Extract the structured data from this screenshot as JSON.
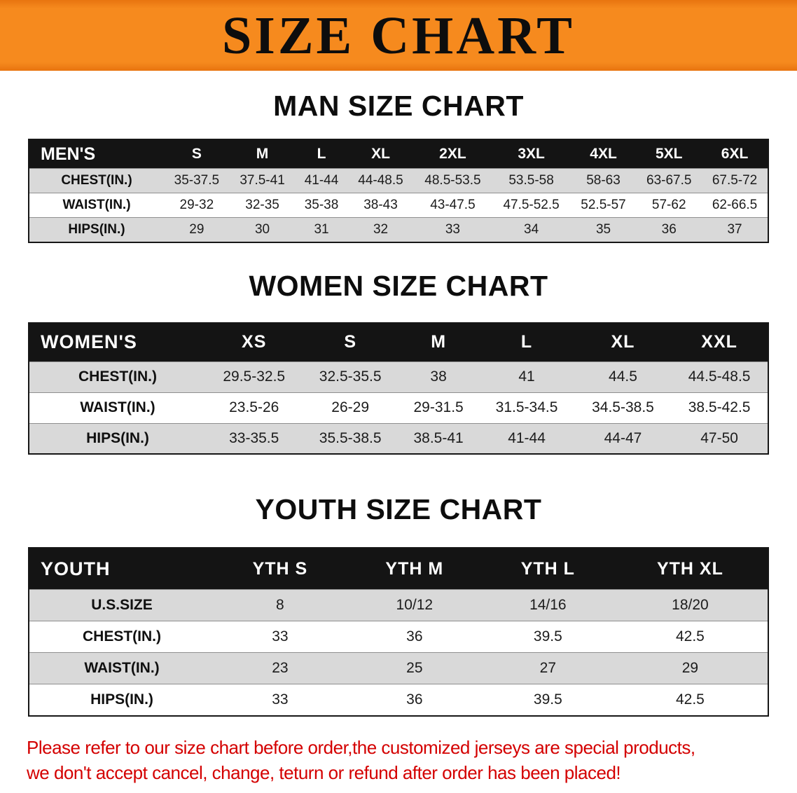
{
  "banner": {
    "title": "SIZE CHART"
  },
  "colors": {
    "banner_orange": "#F68A1E",
    "table_header_black": "#141414",
    "row_gray": "#D9D9D9",
    "disclaimer_red": "#D40000"
  },
  "sections": {
    "men": {
      "heading": "MAN SIZE CHART",
      "table": {
        "header": [
          "MEN'S",
          "S",
          "M",
          "L",
          "XL",
          "2XL",
          "3XL",
          "4XL",
          "5XL",
          "6XL"
        ],
        "rows": [
          {
            "label": "CHEST(IN.)",
            "values": [
              "35-37.5",
              "37.5-41",
              "41-44",
              "44-48.5",
              "48.5-53.5",
              "53.5-58",
              "58-63",
              "63-67.5",
              "67.5-72"
            ]
          },
          {
            "label": "WAIST(IN.)",
            "values": [
              "29-32",
              "32-35",
              "35-38",
              "38-43",
              "43-47.5",
              "47.5-52.5",
              "52.5-57",
              "57-62",
              "62-66.5"
            ]
          },
          {
            "label": "HIPS(IN.)",
            "values": [
              "29",
              "30",
              "31",
              "32",
              "33",
              "34",
              "35",
              "36",
              "37"
            ]
          }
        ]
      }
    },
    "women": {
      "heading": "WOMEN SIZE CHART",
      "table": {
        "header": [
          "WOMEN'S",
          "XS",
          "S",
          "M",
          "L",
          "XL",
          "XXL"
        ],
        "rows": [
          {
            "label": "CHEST(IN.)",
            "values": [
              "29.5-32.5",
              "32.5-35.5",
              "38",
              "41",
              "44.5",
              "44.5-48.5"
            ]
          },
          {
            "label": "WAIST(IN.)",
            "values": [
              "23.5-26",
              "26-29",
              "29-31.5",
              "31.5-34.5",
              "34.5-38.5",
              "38.5-42.5"
            ]
          },
          {
            "label": "HIPS(IN.)",
            "values": [
              "33-35.5",
              "35.5-38.5",
              "38.5-41",
              "41-44",
              "44-47",
              "47-50"
            ]
          }
        ]
      }
    },
    "youth": {
      "heading": "YOUTH SIZE CHART",
      "table": {
        "header": [
          "YOUTH",
          "YTH S",
          "YTH M",
          "YTH L",
          "YTH XL"
        ],
        "rows": [
          {
            "label": "U.S.SIZE",
            "values": [
              "8",
              "10/12",
              "14/16",
              "18/20"
            ]
          },
          {
            "label": "CHEST(IN.)",
            "values": [
              "33",
              "36",
              "39.5",
              "42.5"
            ]
          },
          {
            "label": "WAIST(IN.)",
            "values": [
              "23",
              "25",
              "27",
              "29"
            ]
          },
          {
            "label": "HIPS(IN.)",
            "values": [
              "33",
              "36",
              "39.5",
              "42.5"
            ]
          }
        ]
      }
    }
  },
  "disclaimer": {
    "line1": "Please refer to our size chart before order,the customized jerseys are special products,",
    "line2": "we don't accept cancel, change, teturn or refund after order has been placed!"
  }
}
